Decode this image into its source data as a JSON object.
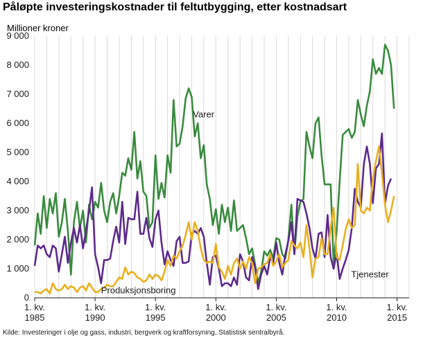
{
  "chart_data": {
    "type": "line",
    "title": "Påløpte investeringskostnader til feltutbygging, etter kostnadsart",
    "unit_label": "Millioner kroner",
    "source": "Kilde: Investeringer i olje og gass, industri, bergverk og kraftforsyning, Statistisk sentralbyrå.",
    "ylim": [
      0,
      9000
    ],
    "y_ticks": [
      0,
      1000,
      2000,
      3000,
      4000,
      5000,
      6000,
      7000,
      8000,
      9000
    ],
    "y_tick_labels": [
      "0",
      "1 000",
      "2 000",
      "3 000",
      "4 000",
      "5 000",
      "6 000",
      "7 000",
      "8 000",
      "9 000"
    ],
    "x_start_year": 1985,
    "x_end_year": 2016,
    "x_ticks": [
      {
        "year": 1985,
        "line1": "1. kv.",
        "line2": "1985"
      },
      {
        "year": 1990,
        "line1": "1. kv.",
        "line2": "1990"
      },
      {
        "year": 1995,
        "line1": "1. kv.",
        "line2": "1995"
      },
      {
        "year": 2000,
        "line1": "1. kv.",
        "line2": "2000"
      },
      {
        "year": 2005,
        "line1": "1. kv.",
        "line2": "2005"
      },
      {
        "year": 2010,
        "line1": "1. kv.",
        "line2": "2010"
      },
      {
        "year": 2015,
        "line1": "1. kv.",
        "line2": "2015"
      }
    ],
    "grid": {
      "vertical": true,
      "horizontal": false
    },
    "series": [
      {
        "name": "Varer",
        "color": "#3a8a3f",
        "values": [
          1800,
          2900,
          2200,
          3500,
          2400,
          3400,
          2900,
          3600,
          2100,
          2600,
          3400,
          2300,
          800,
          2600,
          3300,
          2400,
          3000,
          1900,
          3200,
          2700,
          3300,
          3100,
          3950,
          3000,
          2600,
          3300,
          3600,
          2900,
          3500,
          4300,
          4200,
          4800,
          4400,
          5700,
          4100,
          4700,
          3650,
          3500,
          2400,
          2600,
          4900,
          3400,
          3950,
          3450,
          4900,
          4300,
          6800,
          5200,
          5300,
          5900,
          6850,
          7200,
          6900,
          5550,
          6000,
          4800,
          5250,
          3900,
          3400,
          2500,
          3050,
          2200,
          3200,
          2600,
          3100,
          2300,
          3350,
          2300,
          2400,
          2500,
          2050,
          1500,
          1700,
          1150,
          500,
          900,
          1600,
          1450,
          1650,
          1350,
          2050,
          2000,
          1500,
          1350,
          2000,
          3200,
          1500,
          2800,
          3300,
          3400,
          5700,
          5200,
          4800,
          6000,
          6200,
          4900,
          3900,
          3900,
          3900,
          1200,
          2300,
          4000,
          5600,
          5700,
          5800,
          5500,
          5700,
          6800,
          6300,
          5900,
          6600,
          7100,
          8200,
          7700,
          7900,
          7700,
          8700,
          8500,
          8000,
          6500
        ]
      },
      {
        "name": "Tjenester",
        "color": "#5c2a8a",
        "values": [
          1100,
          1800,
          1700,
          1800,
          1500,
          1400,
          1800,
          1700,
          900,
          1500,
          2100,
          1200,
          1900,
          2400,
          1900,
          2500,
          1700,
          2300,
          3000,
          3800,
          1500,
          1050,
          500,
          1300,
          1300,
          1350,
          1950,
          2450,
          1900,
          3300,
          1850,
          2750,
          2700,
          2700,
          3650,
          2200,
          2200,
          2750,
          2050,
          1750,
          2700,
          3000,
          1900,
          1150,
          1600,
          1300,
          1100,
          1950,
          2100,
          1200,
          1200,
          1250,
          2200,
          2300,
          2200,
          2400,
          2100,
          1200,
          450,
          1400,
          1450,
          1000,
          400,
          500,
          500,
          400,
          700,
          450,
          1500,
          1250,
          700,
          600,
          1400,
          1050,
          300,
          800,
          1100,
          800,
          1400,
          1200,
          1900,
          1200,
          800,
          1500,
          1950,
          2600,
          1500,
          3400,
          3350,
          3300,
          2900,
          2400,
          1700,
          1350,
          2200,
          2250,
          1400,
          2850,
          1400,
          1000,
          1550,
          650,
          1000,
          1300,
          1650,
          2400,
          3750,
          3300,
          3100,
          4600,
          5200,
          4600,
          3250,
          4450,
          4600,
          5650,
          3250,
          3850,
          4100
        ]
      },
      {
        "name": "Produksjonsboring",
        "color": "#e8b020",
        "values": [
          200,
          200,
          150,
          250,
          300,
          150,
          500,
          300,
          250,
          300,
          450,
          300,
          400,
          350,
          200,
          350,
          400,
          250,
          500,
          350,
          200,
          200,
          300,
          350,
          450,
          400,
          400,
          550,
          700,
          650,
          1050,
          800,
          900,
          850,
          700,
          650,
          550,
          600,
          800,
          650,
          800,
          750,
          600,
          900,
          1300,
          1100,
          1450,
          1350,
          1600,
          1800,
          2150,
          2600,
          2000,
          2600,
          2300,
          1700,
          1300,
          1200,
          1250,
          1200,
          1850,
          1050,
          900,
          650,
          1100,
          800,
          1200,
          1350,
          1000,
          1250,
          1000,
          1400,
          1200,
          500,
          1000,
          1050,
          1150,
          1200,
          1500,
          1100,
          1250,
          1500,
          1050,
          1200,
          1300,
          1950,
          1800,
          1700,
          1900,
          1400,
          2500,
          1700,
          700,
          1350,
          1400,
          2050,
          1500,
          1500,
          2400,
          3100,
          1400,
          1300,
          1800,
          2350,
          2700,
          2400,
          2500,
          4600,
          3000,
          2900,
          3100,
          3000,
          4100,
          4700,
          5200,
          4300,
          3200,
          2600,
          3000,
          3500
        ]
      }
    ],
    "annotations": [
      {
        "text": "Varer",
        "year": 1998.1,
        "value": 6200
      },
      {
        "text": "Tjenester",
        "year": 2011.2,
        "value": 700
      },
      {
        "text": "Produksjonsboring",
        "year": 1990.5,
        "value": 150
      }
    ]
  }
}
